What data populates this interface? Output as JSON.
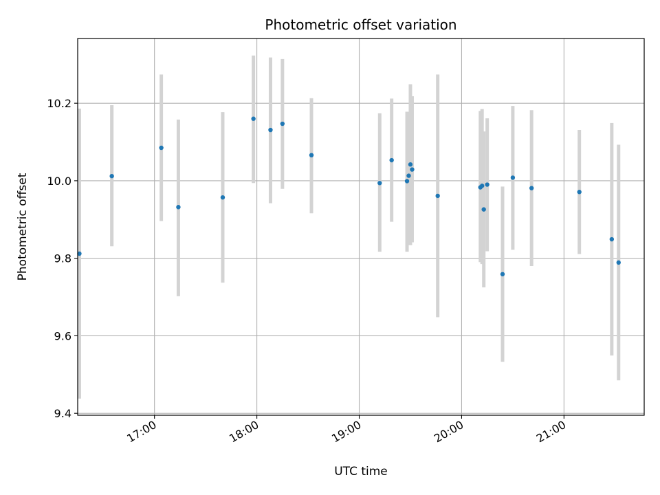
{
  "chart_data": {
    "type": "scatter",
    "title": "Photometric offset variation",
    "xlabel": "UTC time",
    "ylabel": "Photometric offset",
    "grid": true,
    "x_ticks": [
      "17:00",
      "18:00",
      "19:00",
      "20:00",
      "21:00"
    ],
    "x_tick_hours": [
      17,
      18,
      19,
      20,
      21
    ],
    "xlim": [
      "16:15",
      "21:47"
    ],
    "y_ticks": [
      "9.4",
      "9.6",
      "9.8",
      "10.0",
      "10.2"
    ],
    "ylim": [
      9.395,
      10.367
    ],
    "colors": {
      "point": "#1f77b4",
      "errorbar": "#d3d3d3",
      "grid": "#b0b0b0"
    },
    "series": [
      {
        "points": [
          {
            "time": "16:16",
            "y": 9.812,
            "y_low": 9.438,
            "y_high": 10.186
          },
          {
            "time": "16:35",
            "y": 10.012,
            "y_low": 9.831,
            "y_high": 10.195
          },
          {
            "time": "17:04",
            "y": 10.085,
            "y_low": 9.896,
            "y_high": 10.274
          },
          {
            "time": "17:14",
            "y": 9.932,
            "y_low": 9.702,
            "y_high": 10.158
          },
          {
            "time": "17:40",
            "y": 9.957,
            "y_low": 9.737,
            "y_high": 10.177
          },
          {
            "time": "17:58",
            "y": 10.16,
            "y_low": 9.994,
            "y_high": 10.323
          },
          {
            "time": "18:08",
            "y": 10.131,
            "y_low": 9.942,
            "y_high": 10.318
          },
          {
            "time": "18:15",
            "y": 10.147,
            "y_low": 9.979,
            "y_high": 10.314
          },
          {
            "time": "18:32",
            "y": 10.066,
            "y_low": 9.916,
            "y_high": 10.213
          },
          {
            "time": "19:12",
            "y": 9.994,
            "y_low": 9.817,
            "y_high": 10.174
          },
          {
            "time": "19:19",
            "y": 10.053,
            "y_low": 9.894,
            "y_high": 10.212
          },
          {
            "time": "19:28",
            "y": 9.999,
            "y_low": 9.817,
            "y_high": 10.178
          },
          {
            "time": "19:29",
            "y": 10.013,
            "y_low": 9.862,
            "y_high": 10.165
          },
          {
            "time": "19:30",
            "y": 10.042,
            "y_low": 9.834,
            "y_high": 10.249
          },
          {
            "time": "19:31",
            "y": 10.029,
            "y_low": 9.841,
            "y_high": 10.218
          },
          {
            "time": "19:46",
            "y": 9.961,
            "y_low": 9.648,
            "y_high": 10.274
          },
          {
            "time": "20:11",
            "y": 9.983,
            "y_low": 9.79,
            "y_high": 10.18
          },
          {
            "time": "20:12",
            "y": 9.987,
            "y_low": 9.785,
            "y_high": 10.185
          },
          {
            "time": "20:13",
            "y": 9.926,
            "y_low": 9.725,
            "y_high": 10.127
          },
          {
            "time": "20:15",
            "y": 9.99,
            "y_low": 9.818,
            "y_high": 10.161
          },
          {
            "time": "20:24",
            "y": 9.759,
            "y_low": 9.533,
            "y_high": 9.985
          },
          {
            "time": "20:30",
            "y": 10.008,
            "y_low": 9.822,
            "y_high": 10.193
          },
          {
            "time": "20:41",
            "y": 9.981,
            "y_low": 9.78,
            "y_high": 10.182
          },
          {
            "time": "21:09",
            "y": 9.971,
            "y_low": 9.811,
            "y_high": 10.131
          },
          {
            "time": "21:28",
            "y": 9.849,
            "y_low": 9.549,
            "y_high": 10.149
          },
          {
            "time": "21:32",
            "y": 9.789,
            "y_low": 9.485,
            "y_high": 10.093
          }
        ]
      }
    ]
  }
}
